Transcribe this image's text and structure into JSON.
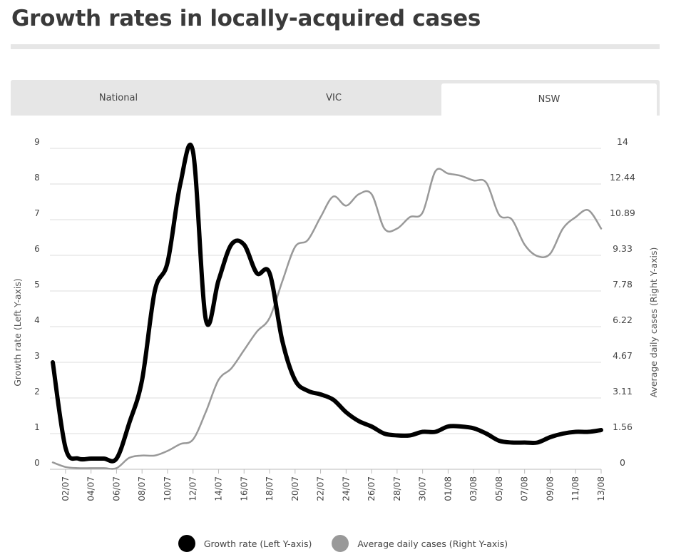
{
  "title": "Growth rates in locally-acquired cases",
  "tabs": [
    {
      "label": "National",
      "active": false
    },
    {
      "label": "VIC",
      "active": false
    },
    {
      "label": "NSW",
      "active": true
    }
  ],
  "chart_data": {
    "type": "line",
    "title": "Growth rates in locally-acquired cases",
    "ylabel_left": "Growth rate (Left Y-axis)",
    "ylabel_right": "Average daily cases (Right Y-axis)",
    "ylim_left": [
      0,
      9
    ],
    "ylim_right": [
      0,
      14
    ],
    "left_ticks": [
      "0",
      "1",
      "2",
      "3",
      "4",
      "5",
      "6",
      "7",
      "8",
      "9"
    ],
    "right_ticks": [
      "0",
      "1.56",
      "3.11",
      "4.67",
      "6.22",
      "7.78",
      "9.33",
      "10.89",
      "12.44",
      "14"
    ],
    "x_tick_labels": [
      "02/07",
      "04/07",
      "06/07",
      "08/07",
      "10/07",
      "12/07",
      "14/07",
      "16/07",
      "18/07",
      "20/07",
      "22/07",
      "24/07",
      "26/07",
      "28/07",
      "30/07",
      "01/08",
      "03/08",
      "05/08",
      "07/08",
      "09/08",
      "11/08",
      "13/08"
    ],
    "x": [
      "01/07",
      "02/07",
      "03/07",
      "04/07",
      "05/07",
      "06/07",
      "07/07",
      "08/07",
      "09/07",
      "10/07",
      "11/07",
      "12/07",
      "13/07",
      "14/07",
      "15/07",
      "16/07",
      "17/07",
      "18/07",
      "19/07",
      "20/07",
      "21/07",
      "22/07",
      "23/07",
      "24/07",
      "25/07",
      "26/07",
      "27/07",
      "28/07",
      "29/07",
      "30/07",
      "31/07",
      "01/08",
      "02/08",
      "03/08",
      "04/08",
      "05/08",
      "06/08",
      "07/08",
      "08/08",
      "09/08",
      "10/08",
      "11/08",
      "12/08",
      "13/08"
    ],
    "grid": true,
    "legend_position": "bottom",
    "series": [
      {
        "name": "Growth rate (Left Y-axis)",
        "axis": "left",
        "color": "#000000",
        "values": [
          3.0,
          0.6,
          0.3,
          0.3,
          0.3,
          0.3,
          1.3,
          2.5,
          5.0,
          5.8,
          8.0,
          8.9,
          4.2,
          5.3,
          6.3,
          6.3,
          5.5,
          5.5,
          3.6,
          2.5,
          2.2,
          2.1,
          1.95,
          1.6,
          1.35,
          1.2,
          1.0,
          0.95,
          0.95,
          1.05,
          1.05,
          1.2,
          1.2,
          1.15,
          1.0,
          0.8,
          0.75,
          0.75,
          0.75,
          0.9,
          1.0,
          1.05,
          1.05,
          1.1
        ]
      },
      {
        "name": "Average daily cases (Right Y-axis)",
        "axis": "right",
        "color": "#999999",
        "values": [
          0.3,
          0.1,
          0.05,
          0.05,
          0.05,
          0.05,
          0.5,
          0.6,
          0.6,
          0.8,
          1.1,
          1.3,
          2.5,
          3.9,
          4.4,
          5.2,
          6.0,
          6.6,
          8.2,
          9.7,
          10.0,
          11.0,
          11.9,
          11.5,
          12.0,
          12.0,
          10.5,
          10.5,
          11.0,
          11.2,
          13.0,
          12.9,
          12.8,
          12.6,
          12.5,
          11.1,
          10.9,
          9.8,
          9.3,
          9.4,
          10.5,
          11.0,
          11.3,
          10.5
        ]
      }
    ]
  }
}
